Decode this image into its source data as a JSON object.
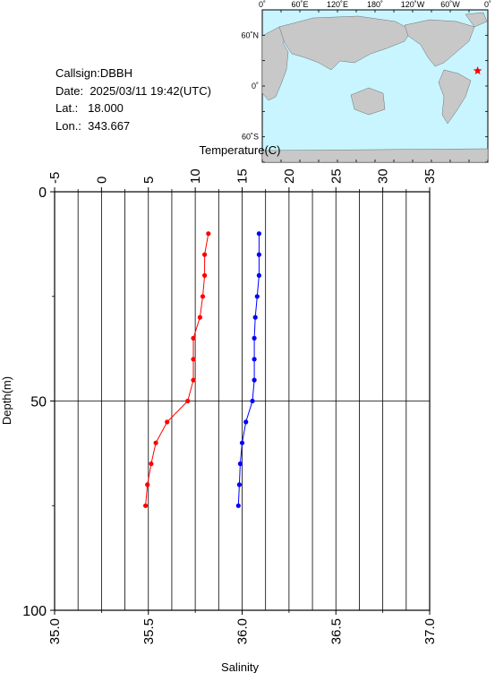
{
  "station": {
    "callsign_label": "Callsign:",
    "callsign": "DBBH",
    "date_label": "Date:",
    "date": "2025/03/11 19:42(UTC)",
    "lat_label": "Lat.:",
    "lat": "18.000",
    "lon_label": "Lon.:",
    "lon": "343.667"
  },
  "map": {
    "top_labels": [
      "0˚",
      "60˚E",
      "120˚E",
      "180˚",
      "120˚W",
      "60˚W",
      "0˚"
    ],
    "lat_labels": [
      "60˚N",
      "0˚",
      "60˚S"
    ],
    "ocean_color": "#c8f5ff",
    "land_color": "#c8c8c8",
    "marker": {
      "lon_deg": 343.667,
      "lat_deg": 18.0,
      "symbol": "star",
      "color": "#ff0000"
    }
  },
  "chart_data": {
    "type": "line",
    "title": "",
    "ylabel": "Depth(m)",
    "ylim": [
      0,
      100
    ],
    "y_inverted": true,
    "y_ticks": [
      0,
      50,
      100
    ],
    "top_axis": {
      "label": "Temperature(C)",
      "range": [
        -5,
        35
      ],
      "ticks": [
        -5,
        0,
        5,
        10,
        15,
        20,
        25,
        30,
        35
      ]
    },
    "bottom_axis": {
      "label": "Salinity",
      "range": [
        35.0,
        37.0
      ],
      "ticks": [
        "35.0",
        "35.5",
        "36.0",
        "36.5",
        "37.0"
      ]
    },
    "grid": true,
    "series": [
      {
        "axis": "top",
        "color": "#ff0000",
        "depth": [
          10,
          15,
          20,
          25,
          30,
          35,
          40,
          45,
          50,
          55,
          60,
          65,
          70,
          75
        ],
        "values": [
          11.4,
          11.0,
          11.0,
          10.8,
          10.5,
          9.8,
          9.8,
          9.8,
          9.2,
          7.0,
          5.8,
          5.3,
          4.9,
          4.7
        ]
      },
      {
        "axis": "bottom",
        "color": "#0000ff",
        "depth": [
          10,
          15,
          20,
          25,
          30,
          35,
          40,
          45,
          50,
          55,
          60,
          65,
          70,
          75
        ],
        "values": [
          36.09,
          36.09,
          36.09,
          36.08,
          36.07,
          36.065,
          36.065,
          36.065,
          36.055,
          36.02,
          36.0,
          35.99,
          35.985,
          35.98
        ]
      }
    ]
  }
}
